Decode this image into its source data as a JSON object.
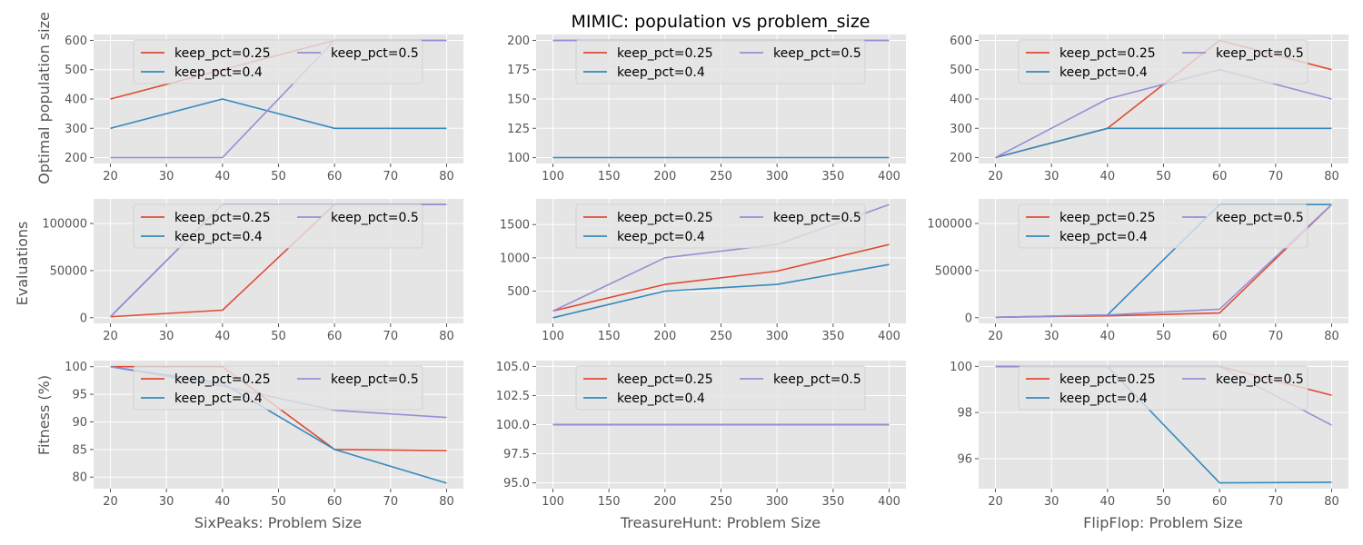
{
  "figure": {
    "suptitle": "MIMIC: population vs problem_size",
    "row_ylabels": [
      "Optimal population size",
      "Evaluations",
      "Fitness (%)"
    ],
    "col_xlabels": [
      "SixPeaks: Problem Size",
      "TreasureHunt: Problem Size",
      "FlipFlop: Problem Size"
    ],
    "colors": {
      "background": "#e5e5e5",
      "grid": "#ffffff",
      "keep_pct=0.25": "#e24a33",
      "keep_pct=0.4": "#348abd",
      "keep_pct=0.5": "#988ed5"
    }
  },
  "chart_data": [
    {
      "type": "line",
      "row": 0,
      "col": 0,
      "title": "",
      "xlabel": "",
      "ylabel": "Optimal population size",
      "xlim": [
        17,
        83
      ],
      "ylim": [
        180,
        620
      ],
      "xticks": [
        20,
        30,
        40,
        50,
        60,
        70,
        80
      ],
      "yticks": [
        200,
        300,
        400,
        500,
        600
      ],
      "grid": true,
      "legend": "top-center",
      "x": [
        20,
        40,
        60,
        80
      ],
      "series": [
        {
          "name": "keep_pct=0.25",
          "values": [
            400,
            500,
            600,
            600
          ]
        },
        {
          "name": "keep_pct=0.4",
          "values": [
            300,
            400,
            300,
            300
          ]
        },
        {
          "name": "keep_pct=0.5",
          "values": [
            200,
            200,
            600,
            600
          ]
        }
      ]
    },
    {
      "type": "line",
      "row": 0,
      "col": 1,
      "title": "",
      "xlabel": "",
      "ylabel": "",
      "xlim": [
        85,
        415
      ],
      "ylim": [
        95,
        205
      ],
      "xticks": [
        100,
        150,
        200,
        250,
        300,
        350,
        400
      ],
      "yticks": [
        100,
        125,
        150,
        175,
        200
      ],
      "grid": true,
      "legend": "top-center",
      "x": [
        100,
        200,
        300,
        400
      ],
      "series": [
        {
          "name": "keep_pct=0.25",
          "values": [
            200,
            200,
            200,
            200
          ]
        },
        {
          "name": "keep_pct=0.4",
          "values": [
            100,
            100,
            100,
            100
          ]
        },
        {
          "name": "keep_pct=0.5",
          "values": [
            200,
            200,
            200,
            200
          ]
        }
      ]
    },
    {
      "type": "line",
      "row": 0,
      "col": 2,
      "title": "",
      "xlabel": "",
      "ylabel": "",
      "xlim": [
        17,
        83
      ],
      "ylim": [
        180,
        620
      ],
      "xticks": [
        20,
        30,
        40,
        50,
        60,
        70,
        80
      ],
      "yticks": [
        200,
        300,
        400,
        500,
        600
      ],
      "grid": true,
      "legend": "top-center",
      "x": [
        20,
        40,
        60,
        80
      ],
      "series": [
        {
          "name": "keep_pct=0.25",
          "values": [
            200,
            300,
            600,
            500
          ]
        },
        {
          "name": "keep_pct=0.4",
          "values": [
            200,
            300,
            300,
            300
          ]
        },
        {
          "name": "keep_pct=0.5",
          "values": [
            200,
            400,
            500,
            400
          ]
        }
      ]
    },
    {
      "type": "line",
      "row": 1,
      "col": 0,
      "title": "",
      "xlabel": "",
      "ylabel": "Evaluations",
      "xlim": [
        17,
        83
      ],
      "ylim": [
        -6000,
        126000
      ],
      "xticks": [
        20,
        30,
        40,
        50,
        60,
        70,
        80
      ],
      "yticks": [
        0,
        50000,
        100000
      ],
      "grid": true,
      "legend": "top-center",
      "x": [
        20,
        40,
        60,
        80
      ],
      "series": [
        {
          "name": "keep_pct=0.25",
          "values": [
            1000,
            8000,
            120000,
            120000
          ]
        },
        {
          "name": "keep_pct=0.4",
          "values": [
            1000,
            120000,
            120000,
            120000
          ]
        },
        {
          "name": "keep_pct=0.5",
          "values": [
            1000,
            120000,
            120000,
            120000
          ]
        }
      ]
    },
    {
      "type": "line",
      "row": 1,
      "col": 1,
      "title": "",
      "xlabel": "",
      "ylabel": "",
      "xlim": [
        85,
        415
      ],
      "ylim": [
        15,
        1885
      ],
      "xticks": [
        100,
        150,
        200,
        250,
        300,
        350,
        400
      ],
      "yticks": [
        500,
        1000,
        1500
      ],
      "grid": true,
      "legend": "top-center",
      "x": [
        100,
        200,
        300,
        400
      ],
      "series": [
        {
          "name": "keep_pct=0.25",
          "values": [
            200,
            600,
            800,
            1200
          ]
        },
        {
          "name": "keep_pct=0.4",
          "values": [
            100,
            500,
            600,
            900
          ]
        },
        {
          "name": "keep_pct=0.5",
          "values": [
            200,
            1000,
            1200,
            1800
          ]
        }
      ]
    },
    {
      "type": "line",
      "row": 1,
      "col": 2,
      "title": "",
      "xlabel": "",
      "ylabel": "",
      "xlim": [
        17,
        83
      ],
      "ylim": [
        -6000,
        126000
      ],
      "xticks": [
        20,
        30,
        40,
        50,
        60,
        70,
        80
      ],
      "yticks": [
        0,
        50000,
        100000
      ],
      "grid": true,
      "legend": "top-center",
      "x": [
        20,
        40,
        60,
        80
      ],
      "series": [
        {
          "name": "keep_pct=0.25",
          "values": [
            500,
            2000,
            5000,
            120000
          ]
        },
        {
          "name": "keep_pct=0.4",
          "values": [
            500,
            3000,
            120000,
            120000
          ]
        },
        {
          "name": "keep_pct=0.5",
          "values": [
            500,
            3000,
            9000,
            120000
          ]
        }
      ]
    },
    {
      "type": "line",
      "row": 2,
      "col": 0,
      "title": "",
      "xlabel": "SixPeaks: Problem Size",
      "ylabel": "Fitness (%)",
      "xlim": [
        17,
        83
      ],
      "ylim": [
        77.9,
        101.1
      ],
      "xticks": [
        20,
        30,
        40,
        50,
        60,
        70,
        80
      ],
      "yticks": [
        80,
        85,
        90,
        95,
        100
      ],
      "grid": true,
      "legend": "top-center",
      "x": [
        20,
        40,
        60,
        80
      ],
      "series": [
        {
          "name": "keep_pct=0.25",
          "values": [
            100,
            100,
            85,
            84.8
          ]
        },
        {
          "name": "keep_pct=0.4",
          "values": [
            100,
            97,
            85,
            78.9
          ]
        },
        {
          "name": "keep_pct=0.5",
          "values": [
            100,
            96.5,
            92.1,
            90.8
          ]
        }
      ]
    },
    {
      "type": "line",
      "row": 2,
      "col": 1,
      "title": "",
      "xlabel": "TreasureHunt: Problem Size",
      "ylabel": "",
      "xlim": [
        85,
        415
      ],
      "ylim": [
        94.5,
        105.5
      ],
      "xticks": [
        100,
        150,
        200,
        250,
        300,
        350,
        400
      ],
      "yticks": [
        95.0,
        97.5,
        100.0,
        102.5,
        105.0
      ],
      "ytick_labels": [
        "95.0",
        "97.5",
        "100.0",
        "102.5",
        "105.0"
      ],
      "grid": true,
      "legend": "top-center",
      "x": [
        100,
        200,
        300,
        400
      ],
      "series": [
        {
          "name": "keep_pct=0.25",
          "values": [
            100,
            100,
            100,
            100
          ]
        },
        {
          "name": "keep_pct=0.4",
          "values": [
            100,
            100,
            100,
            100
          ]
        },
        {
          "name": "keep_pct=0.5",
          "values": [
            100,
            100,
            100,
            100
          ]
        }
      ]
    },
    {
      "type": "line",
      "row": 2,
      "col": 2,
      "title": "",
      "xlabel": "FlipFlop: Problem Size",
      "ylabel": "",
      "xlim": [
        17,
        83
      ],
      "ylim": [
        94.7,
        100.25
      ],
      "xticks": [
        20,
        30,
        40,
        50,
        60,
        70,
        80
      ],
      "yticks": [
        96,
        98,
        100
      ],
      "grid": true,
      "legend": "top-center",
      "x": [
        20,
        40,
        60,
        80
      ],
      "series": [
        {
          "name": "keep_pct=0.25",
          "values": [
            100,
            100,
            100,
            98.75
          ]
        },
        {
          "name": "keep_pct=0.4",
          "values": [
            100,
            100,
            94.95,
            94.98
          ]
        },
        {
          "name": "keep_pct=0.5",
          "values": [
            100,
            100,
            100,
            97.45
          ]
        }
      ]
    }
  ]
}
